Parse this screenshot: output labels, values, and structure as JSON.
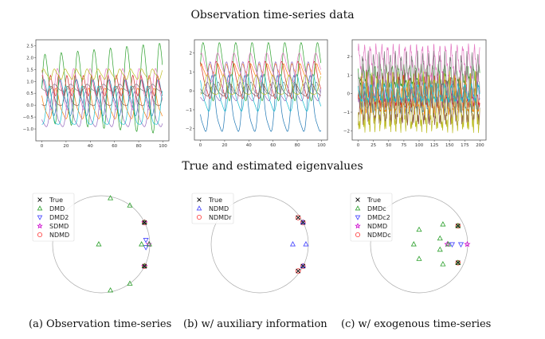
{
  "titles": {
    "top": "Observation time-series data",
    "bottom": "True and estimated eigenvalues"
  },
  "captions": [
    "(a) Observation time-series",
    "(b) w/ auxiliary information",
    "(c) w/ exogenous time-series"
  ],
  "colors": [
    "#1f77b4",
    "#ff7f0e",
    "#2ca02c",
    "#d62728",
    "#9467bd",
    "#8c564b",
    "#e377c2",
    "#7f7f7f",
    "#bcbd22",
    "#17becf"
  ],
  "chart_data": [
    {
      "type": "line",
      "panel": "a-timeseries",
      "xlim": [
        0,
        100
      ],
      "ylim": [
        -1.5,
        2.75
      ],
      "xticks": [
        "0",
        "20",
        "40",
        "60",
        "80",
        "100"
      ],
      "xtick_values": [
        0,
        20,
        40,
        60,
        80,
        100
      ],
      "yticks": [
        "−1.0",
        "−0.5",
        "0.0",
        "0.5",
        "1.0",
        "1.5",
        "2.0",
        "2.5"
      ],
      "ytick_values": [
        -1,
        -0.5,
        0,
        0.5,
        1,
        1.5,
        2,
        2.5
      ],
      "series_shape": "approximate periodic signals",
      "series": [
        {
          "mean": 0.3,
          "amplitude": 0.7,
          "period": 13.5,
          "phase": 0.5
        },
        {
          "mean": 0.0,
          "amplitude": 0.6,
          "period": 13.5,
          "phase": 2.2
        },
        {
          "mean": 0.7,
          "amplitude": 1.3,
          "period": 13.5,
          "phase": 0.0,
          "growth": 0.4
        },
        {
          "mean": 0.8,
          "amplitude": 0.4,
          "period": 6.8,
          "phase": 1.0
        },
        {
          "mean": -0.3,
          "amplitude": 0.7,
          "period": 13.5,
          "phase": 3.5
        },
        {
          "mean": 0.3,
          "amplitude": 0.4,
          "period": 13.5,
          "phase": 4.2
        },
        {
          "mean": 0.6,
          "amplitude": 0.8,
          "period": 13.5,
          "phase": 1.6
        },
        {
          "mean": 0.7,
          "amplitude": 0.15,
          "period": 13.5,
          "phase": 2.8
        },
        {
          "mean": 1.3,
          "amplitude": 0.2,
          "period": 9.0,
          "phase": 0.3
        },
        {
          "mean": -0.2,
          "amplitude": 0.8,
          "period": 13.5,
          "phase": 5.0
        }
      ]
    },
    {
      "type": "line",
      "panel": "b-timeseries",
      "xlim": [
        0,
        100
      ],
      "ylim": [
        -2.6,
        2.7
      ],
      "xticks": [
        "0",
        "20",
        "40",
        "60",
        "80",
        "100"
      ],
      "xtick_values": [
        0,
        20,
        40,
        60,
        80,
        100
      ],
      "yticks": [
        "−2",
        "−1",
        "0",
        "1",
        "2"
      ],
      "ytick_values": [
        -2,
        -1,
        0,
        1,
        2
      ],
      "series_shape": "approximate periodic signals",
      "series": [
        {
          "mean": -0.9,
          "amplitude": 1.4,
          "period": 13.5,
          "phase": 3.2
        },
        {
          "mean": 1.1,
          "amplitude": 0.3,
          "period": 6.8,
          "phase": 0.5
        },
        {
          "mean": 1.0,
          "amplitude": 1.4,
          "period": 13.5,
          "phase": 0.2
        },
        {
          "mean": 0.5,
          "amplitude": 0.9,
          "period": 13.5,
          "phase": 1.5
        },
        {
          "mean": 0.3,
          "amplitude": 1.0,
          "period": 13.5,
          "phase": 4.0
        },
        {
          "mean": 0.0,
          "amplitude": 0.3,
          "period": 13.5,
          "phase": 2.5
        },
        {
          "mean": 1.2,
          "amplitude": 0.7,
          "period": 13.5,
          "phase": 0.9
        },
        {
          "mean": 0.1,
          "amplitude": 0.3,
          "period": 9.0,
          "phase": 3.7
        },
        {
          "mean": 0.2,
          "amplitude": 0.5,
          "period": 13.5,
          "phase": 5.2
        },
        {
          "mean": -0.2,
          "amplitude": 0.9,
          "period": 13.5,
          "phase": 2.0
        }
      ]
    },
    {
      "type": "line",
      "panel": "c-timeseries",
      "xlim": [
        0,
        200
      ],
      "ylim": [
        -2.5,
        2.9
      ],
      "xticks": [
        "0",
        "25",
        "50",
        "75",
        "100",
        "125",
        "150",
        "175",
        "200"
      ],
      "xtick_values": [
        0,
        25,
        50,
        75,
        100,
        125,
        150,
        175,
        200
      ],
      "yticks": [
        "−2",
        "−1",
        "0",
        "1",
        "2"
      ],
      "ytick_values": [
        -2,
        -1,
        0,
        1,
        2
      ],
      "series_shape": "approximate noisy periodic signals",
      "series": [
        {
          "mean": -0.5,
          "amplitude": 0.5,
          "period": 9.0,
          "phase": 0.3
        },
        {
          "mean": -0.4,
          "amplitude": 0.6,
          "period": 8.0,
          "phase": 1.4
        },
        {
          "mean": 0.9,
          "amplitude": 0.5,
          "period": 9.5,
          "phase": 2.2
        },
        {
          "mean": 0.0,
          "amplitude": 0.7,
          "period": 8.5,
          "phase": 3.0
        },
        {
          "mean": 0.0,
          "amplitude": 0.5,
          "period": 10.0,
          "phase": 4.1
        },
        {
          "mean": -0.5,
          "amplitude": 1.2,
          "period": 9.0,
          "phase": 5.0
        },
        {
          "mean": 1.6,
          "amplitude": 0.8,
          "period": 9.5,
          "phase": 0.8
        },
        {
          "mean": 0.6,
          "amplitude": 1.2,
          "period": 9.0,
          "phase": 2.6
        },
        {
          "mean": -0.7,
          "amplitude": 1.3,
          "period": 8.5,
          "phase": 3.6
        },
        {
          "mean": 0.0,
          "amplitude": 0.4,
          "period": 11.0,
          "phase": 1.9
        }
      ]
    },
    {
      "type": "scatter",
      "panel": "a-eigenvalues",
      "axis": "complex plane with unit circle",
      "legend_position": "top-left",
      "series": [
        {
          "name": "True",
          "marker": "x",
          "color": "#000000",
          "points": [
            [
              0.89,
              0.45
            ],
            [
              0.89,
              -0.45
            ]
          ]
        },
        {
          "name": "DMD",
          "marker": "triangle-up",
          "color": "#2ca02c",
          "points": [
            [
              0.19,
              0.95
            ],
            [
              0.59,
              0.8
            ],
            [
              -0.05,
              0
            ],
            [
              0.83,
              0
            ],
            [
              0.99,
              0
            ],
            [
              0.59,
              -0.81
            ],
            [
              0.19,
              -0.95
            ],
            [
              0.89,
              0.45
            ],
            [
              0.89,
              -0.45
            ]
          ]
        },
        {
          "name": "DMD2",
          "marker": "triangle-down",
          "color": "#4444ff",
          "points": [
            [
              0.92,
              0.09
            ],
            [
              0.92,
              -0.06
            ]
          ]
        },
        {
          "name": "SDMD",
          "marker": "star",
          "color": "#cc00cc",
          "points": [
            [
              0.98,
              0
            ],
            [
              0.89,
              0.45
            ],
            [
              0.89,
              -0.45
            ]
          ]
        },
        {
          "name": "NDMD",
          "marker": "circle",
          "color": "#ff3333",
          "points": [
            [
              0.89,
              0.45
            ],
            [
              0.89,
              -0.45
            ]
          ]
        }
      ]
    },
    {
      "type": "scatter",
      "panel": "b-eigenvalues",
      "axis": "complex plane with unit circle",
      "legend_position": "top-left",
      "series": [
        {
          "name": "True",
          "marker": "x",
          "color": "#000000",
          "points": [
            [
              0.79,
              0.55
            ],
            [
              0.89,
              0.45
            ],
            [
              0.89,
              -0.45
            ],
            [
              0.79,
              -0.55
            ]
          ]
        },
        {
          "name": "NDMD",
          "marker": "triangle-up",
          "color": "#4444ff",
          "points": [
            [
              0.68,
              0
            ],
            [
              0.95,
              0
            ],
            [
              0.89,
              0.45
            ],
            [
              0.89,
              -0.45
            ]
          ]
        },
        {
          "name": "NDMDr",
          "marker": "circle",
          "color": "#ff3333",
          "points": [
            [
              0.79,
              0.55
            ],
            [
              0.89,
              0.45
            ],
            [
              0.89,
              -0.45
            ],
            [
              0.79,
              -0.55
            ]
          ]
        }
      ]
    },
    {
      "type": "scatter",
      "panel": "c-eigenvalues",
      "axis": "complex plane with unit circle",
      "legend_position": "top-left",
      "series": [
        {
          "name": "True",
          "marker": "x",
          "color": "#000000",
          "points": [
            [
              0.8,
              0.38
            ],
            [
              0.8,
              -0.38
            ]
          ]
        },
        {
          "name": "DMDc",
          "marker": "triangle-up",
          "color": "#2ca02c",
          "points": [
            [
              0.49,
              0.41
            ],
            [
              0,
              0.3
            ],
            [
              0.43,
              0.12
            ],
            [
              -0.11,
              0
            ],
            [
              0.43,
              -0.11
            ],
            [
              0,
              -0.3
            ],
            [
              0.49,
              -0.41
            ],
            [
              0.6,
              0
            ],
            [
              0.8,
              0.38
            ],
            [
              0.8,
              -0.38
            ]
          ]
        },
        {
          "name": "DMDc2",
          "marker": "triangle-down",
          "color": "#4444ff",
          "points": [
            [
              0.68,
              0
            ],
            [
              0.86,
              0
            ]
          ]
        },
        {
          "name": "NDMD",
          "marker": "star",
          "color": "#cc00cc",
          "points": [
            [
              0.58,
              0
            ],
            [
              0.99,
              0
            ]
          ]
        },
        {
          "name": "NDMDc",
          "marker": "circle",
          "color": "#ff3333",
          "points": [
            [
              0.8,
              0.38
            ],
            [
              0.8,
              -0.38
            ]
          ]
        }
      ]
    }
  ]
}
